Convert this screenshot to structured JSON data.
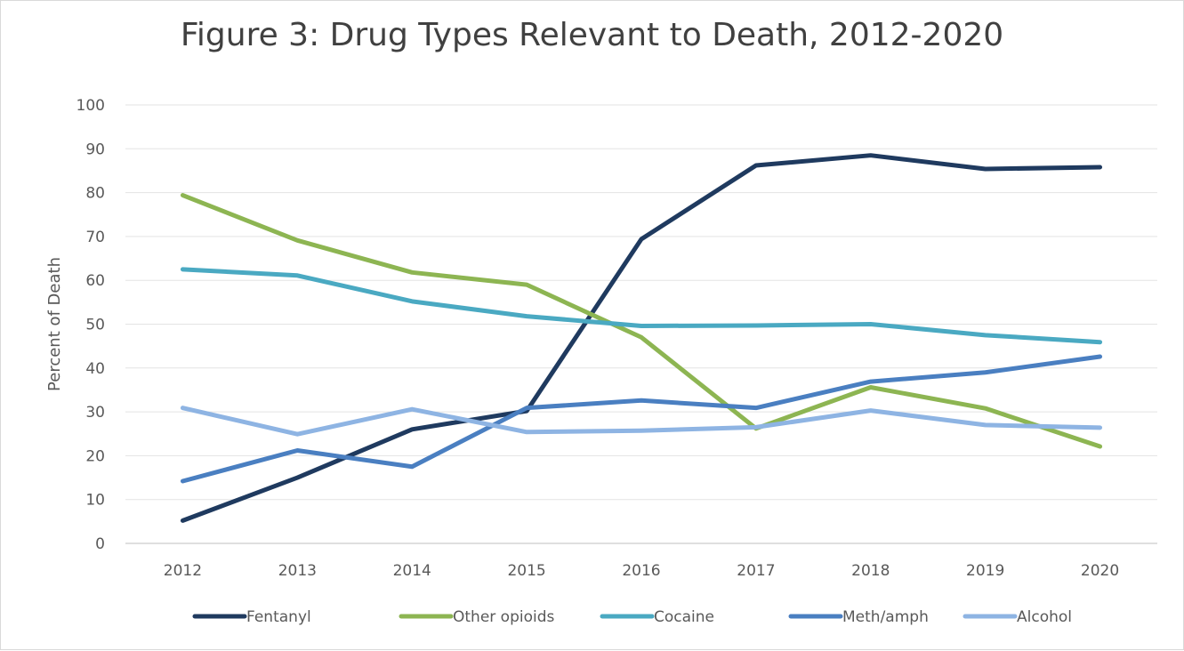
{
  "chart_data": {
    "type": "line",
    "title": "Figure 3: Drug Types Relevant to Death, 2012-2020",
    "xlabel": "",
    "ylabel": "Percent of Death",
    "ylim": [
      0,
      100
    ],
    "yticks": [
      0,
      10,
      20,
      30,
      40,
      50,
      60,
      70,
      80,
      90,
      100
    ],
    "grid": true,
    "legend_position": "bottom",
    "categories": [
      "2012",
      "2013",
      "2014",
      "2015",
      "2016",
      "2017",
      "2018",
      "2019",
      "2020"
    ],
    "series": [
      {
        "name": "Fentanyl",
        "color": "#1f3a5f",
        "values": [
          5.2,
          15.0,
          26.0,
          30.2,
          69.4,
          86.2,
          88.5,
          85.4,
          85.8
        ]
      },
      {
        "name": "Other opioids",
        "color": "#8db552",
        "values": [
          79.4,
          69.1,
          61.8,
          59.0,
          47.0,
          26.2,
          35.6,
          30.8,
          22.1
        ]
      },
      {
        "name": "Cocaine",
        "color": "#4aa9c2",
        "values": [
          62.5,
          61.1,
          55.2,
          51.8,
          49.6,
          49.7,
          50.0,
          47.5,
          45.9
        ]
      },
      {
        "name": "Meth/amph",
        "color": "#4a7fc1",
        "values": [
          14.2,
          21.2,
          17.5,
          30.9,
          32.6,
          30.9,
          36.9,
          39.0,
          42.6
        ]
      },
      {
        "name": "Alcohol",
        "color": "#8eb4e3",
        "values": [
          30.9,
          24.9,
          30.6,
          25.4,
          25.7,
          26.5,
          30.3,
          27.0,
          26.4
        ]
      }
    ]
  }
}
